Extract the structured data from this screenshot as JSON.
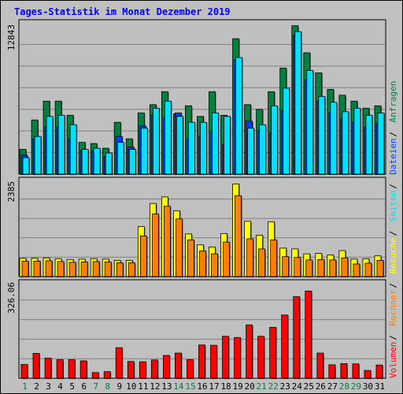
{
  "title": "Tages-Statistik im Monat Dezember 2019",
  "colors": {
    "background": "#c0c0c0",
    "border": "#000000",
    "hits": "#008040",
    "files": "#0040ff",
    "pages": "#00e0ff",
    "visits": "#ffff00",
    "sites": "#ff8000",
    "kbytes": "#ff0000",
    "weekday_label": "#000000",
    "weekend_label": "#008040",
    "title_color": "#0000ff"
  },
  "chart_data": [
    {
      "type": "bar",
      "panel": "top",
      "ylim": [
        0,
        12843
      ],
      "y_tick_label": "12843",
      "right_legend": [
        {
          "text": "Anfragen",
          "color": "#008040"
        },
        {
          "text": "Dateien",
          "color": "#0040ff"
        },
        {
          "text": "Seiten",
          "color": "#00e0ff"
        }
      ],
      "categories": [
        "1",
        "2",
        "3",
        "4",
        "5",
        "6",
        "7",
        "8",
        "9",
        "10",
        "11",
        "12",
        "13",
        "14",
        "15",
        "16",
        "17",
        "18",
        "19",
        "20",
        "21",
        "22",
        "23",
        "24",
        "25",
        "26",
        "27",
        "28",
        "29",
        "30",
        "31"
      ],
      "series": [
        {
          "name": "Anfragen",
          "values": [
            2100,
            4600,
            6200,
            6200,
            5000,
            2700,
            2600,
            2200,
            4400,
            3000,
            5200,
            5900,
            7000,
            5100,
            5800,
            4900,
            7000,
            5000,
            11500,
            5900,
            5500,
            7000,
            9000,
            12600,
            10300,
            8600,
            7200,
            6700,
            6200,
            5600,
            5800
          ]
        },
        {
          "name": "Dateien",
          "values": [
            1600,
            3000,
            4000,
            4000,
            3000,
            2000,
            2000,
            1500,
            3200,
            2300,
            4100,
            5000,
            4800,
            5200,
            3000,
            3200,
            3600,
            2500,
            9700,
            4500,
            3700,
            3500,
            5400,
            11800,
            8000,
            6200,
            5200,
            4700,
            4400,
            4000,
            4300
          ]
        },
        {
          "name": "Seiten",
          "values": [
            1400,
            3200,
            4900,
            5000,
            4200,
            2100,
            2200,
            1800,
            2700,
            2100,
            3900,
            5600,
            6200,
            4900,
            4400,
            4400,
            5200,
            4900,
            9900,
            3900,
            4200,
            5800,
            7300,
            12100,
            8800,
            6600,
            6100,
            5300,
            5600,
            5000,
            5200
          ]
        }
      ]
    },
    {
      "type": "bar",
      "panel": "middle",
      "ylim": [
        0,
        2385
      ],
      "y_tick_label": "2385",
      "right_legend": [
        {
          "text": "Besuche",
          "color": "#ffff00"
        },
        {
          "text": "Rechner",
          "color": "#ff8000"
        }
      ],
      "categories": [
        "1",
        "2",
        "3",
        "4",
        "5",
        "6",
        "7",
        "8",
        "9",
        "10",
        "11",
        "12",
        "13",
        "14",
        "15",
        "16",
        "17",
        "18",
        "19",
        "20",
        "21",
        "22",
        "23",
        "24",
        "25",
        "26",
        "27",
        "28",
        "29",
        "30",
        "31"
      ],
      "series": [
        {
          "name": "Besuche",
          "values": [
            450,
            450,
            460,
            440,
            420,
            430,
            440,
            430,
            400,
            400,
            1230,
            1800,
            1960,
            1620,
            1050,
            780,
            730,
            1060,
            2280,
            1360,
            1020,
            1350,
            700,
            680,
            560,
            570,
            530,
            640,
            430,
            440,
            510
          ]
        },
        {
          "name": "Rechner",
          "values": [
            380,
            380,
            390,
            370,
            350,
            360,
            370,
            360,
            340,
            340,
            1000,
            1540,
            1730,
            1420,
            900,
            630,
            560,
            850,
            1990,
            930,
            680,
            900,
            490,
            470,
            410,
            420,
            410,
            460,
            310,
            330,
            400
          ]
        }
      ]
    },
    {
      "type": "bar",
      "panel": "bottom",
      "ylim": [
        0,
        326.06
      ],
      "y_tick_label": "326.06",
      "right_legend": [
        {
          "text": "Volumen",
          "color": "#ff0000"
        }
      ],
      "categories": [
        "1",
        "2",
        "3",
        "4",
        "5",
        "6",
        "7",
        "8",
        "9",
        "10",
        "11",
        "12",
        "13",
        "14",
        "15",
        "16",
        "17",
        "18",
        "19",
        "20",
        "21",
        "22",
        "23",
        "24",
        "25",
        "26",
        "27",
        "28",
        "29",
        "30",
        "31"
      ],
      "series": [
        {
          "name": "Volumen",
          "values": [
            46,
            83,
            67,
            62,
            62,
            58,
            19,
            22,
            102,
            56,
            55,
            61,
            76,
            84,
            62,
            111,
            110,
            140,
            136,
            178,
            140,
            170,
            211,
            272,
            291,
            84,
            45,
            49,
            48,
            26,
            44
          ]
        }
      ]
    }
  ],
  "x_axis": {
    "labels": [
      "1",
      "2",
      "3",
      "4",
      "5",
      "6",
      "7",
      "8",
      "9",
      "10",
      "11",
      "12",
      "13",
      "14",
      "15",
      "16",
      "17",
      "18",
      "19",
      "20",
      "21",
      "22",
      "23",
      "24",
      "25",
      "26",
      "27",
      "28",
      "29",
      "30",
      "31"
    ],
    "weekend": [
      1,
      7,
      8,
      14,
      15,
      21,
      22,
      28,
      29
    ]
  }
}
